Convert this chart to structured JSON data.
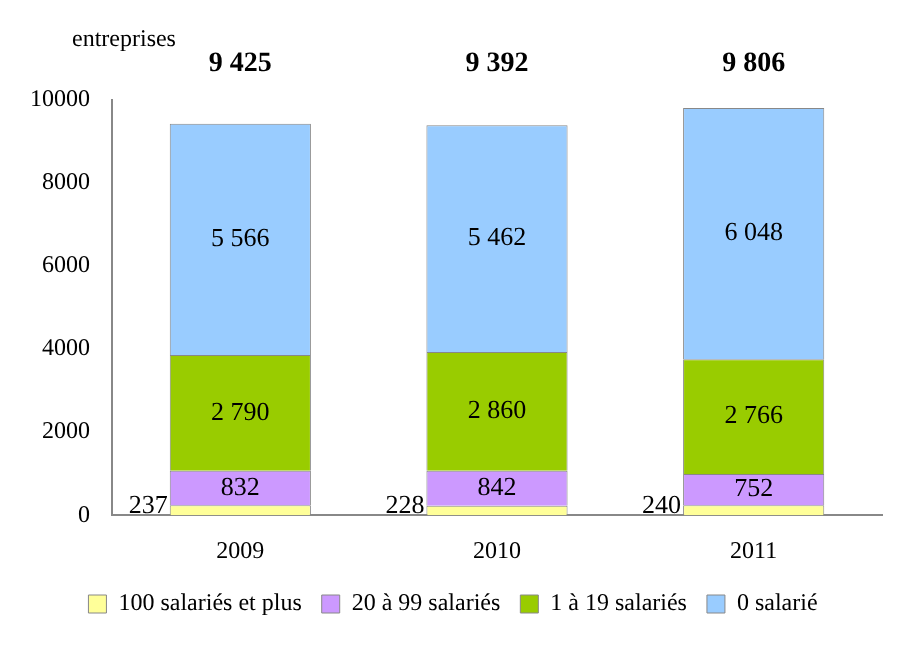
{
  "chart_data": {
    "type": "bar",
    "stacked": true,
    "ylabel": "entreprises",
    "categories": [
      "2009",
      "2010",
      "2011"
    ],
    "series": [
      {
        "name": "100 salariés et plus",
        "color": "#ffff99",
        "values": [
          237,
          228,
          240
        ],
        "value_labels": [
          "237",
          "228",
          "240"
        ]
      },
      {
        "name": "20 à 99 salariés",
        "color": "#cc99ff",
        "values": [
          832,
          842,
          752
        ],
        "value_labels": [
          "832",
          "842",
          "752"
        ]
      },
      {
        "name": "1 à 19 salariés",
        "color": "#99cc00",
        "values": [
          2790,
          2860,
          2766
        ],
        "value_labels": [
          "2 790",
          "2 860",
          "2 766"
        ]
      },
      {
        "name": "0 salarié",
        "color": "#99ccff",
        "values": [
          5566,
          5462,
          6048
        ],
        "value_labels": [
          "5 566",
          "5 462",
          "6 048"
        ]
      }
    ],
    "totals": [
      "9 425",
      "9 392",
      "9 806"
    ],
    "ylim": [
      0,
      10000
    ],
    "yticks": [
      0,
      2000,
      4000,
      6000,
      8000,
      10000
    ],
    "grid": false,
    "legend": "bottom"
  }
}
